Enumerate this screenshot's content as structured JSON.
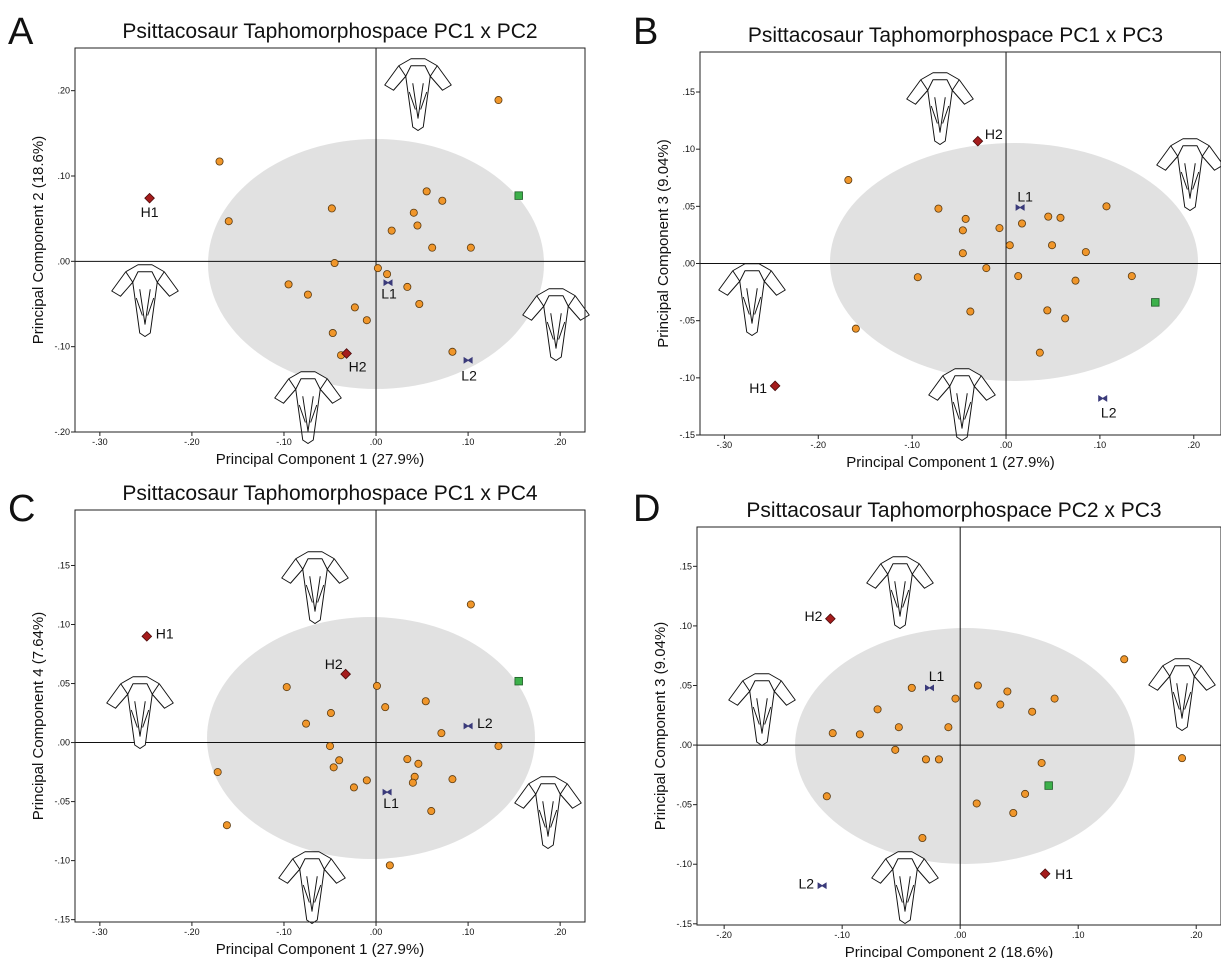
{
  "chart_data": [
    {
      "type": "scatter",
      "panel": "A",
      "title": "Psittacosaur Taphomorphospace PC1 x PC2",
      "x_label": "Principal Component 1 (27.9%)",
      "y_label": "Principal Component 2 (18.6%)",
      "xlim": [
        -0.327,
        0.227
      ],
      "ylim": [
        -0.2,
        0.25
      ],
      "xticks": [
        {
          "value": -0.3,
          "label": "-.30"
        },
        {
          "value": -0.2,
          "label": "-.20"
        },
        {
          "value": -0.1,
          "label": "-.10"
        },
        {
          "value": 0,
          "label": ".00"
        },
        {
          "value": 0.1,
          "label": ".10"
        },
        {
          "value": 0.2,
          "label": ".20"
        }
      ],
      "yticks": [
        {
          "value": -0.2,
          "label": "-.20"
        },
        {
          "value": -0.1,
          "label": "-.10"
        },
        {
          "value": 0,
          "label": ".00"
        },
        {
          "value": 0.1,
          "label": ".10"
        },
        {
          "value": 0.2,
          "label": ".20"
        }
      ],
      "series": [
        {
          "color": "#f0962a",
          "marker": "circle",
          "x": [
            -0.17,
            -0.16,
            -0.048,
            0.133,
            0.055,
            0.072,
            0.041,
            0.045,
            0.017,
            0.061,
            0.103,
            -0.045,
            0.002,
            0.012,
            -0.095,
            -0.074,
            0.034,
            0.047,
            -0.023,
            -0.01,
            -0.047,
            -0.038,
            0.083
          ],
          "y": [
            0.117,
            0.047,
            0.062,
            0.189,
            0.082,
            0.071,
            0.057,
            0.042,
            0.036,
            0.016,
            0.016,
            -0.002,
            -0.008,
            -0.015,
            -0.027,
            -0.039,
            -0.03,
            -0.05,
            -0.054,
            -0.069,
            -0.084,
            -0.11,
            -0.106
          ]
        },
        {
          "color": "#3cb04a",
          "marker": "square",
          "x": [
            0.155
          ],
          "y": [
            0.077
          ]
        },
        {
          "name": "H1",
          "color": "#a51c1c",
          "marker": "diamond",
          "x": [
            -0.246
          ],
          "y": [
            0.074
          ]
        },
        {
          "name": "H2",
          "color": "#a51c1c",
          "marker": "diamond",
          "x": [
            -0.032
          ],
          "y": [
            -0.108
          ]
        },
        {
          "name": "L1",
          "color": "#3a3a7a",
          "marker": "bowtie",
          "x": [
            0.013
          ],
          "y": [
            -0.025
          ]
        },
        {
          "name": "L2",
          "color": "#3a3a7a",
          "marker": "bowtie",
          "x": [
            0.1
          ],
          "y": [
            -0.116
          ]
        }
      ]
    },
    {
      "type": "scatter",
      "panel": "B",
      "title": "Psittacosaur Taphomorphospace PC1 x PC3",
      "x_label": "Principal Component 1 (27.9%)",
      "y_label": "Principal Component 3 (9.04%)",
      "xlim": [
        -0.326,
        0.229
      ],
      "ylim": [
        -0.15,
        0.185
      ],
      "xticks": [
        {
          "value": -0.3,
          "label": "-.30"
        },
        {
          "value": -0.2,
          "label": "-.20"
        },
        {
          "value": -0.1,
          "label": "-.10"
        },
        {
          "value": 0,
          "label": ".00"
        },
        {
          "value": 0.1,
          "label": ".10"
        },
        {
          "value": 0.2,
          "label": ".20"
        }
      ],
      "yticks": [
        {
          "value": -0.15,
          "label": "-.15"
        },
        {
          "value": -0.1,
          "label": "-.10"
        },
        {
          "value": -0.05,
          "label": "-.05"
        },
        {
          "value": 0,
          "label": ".00"
        },
        {
          "value": 0.05,
          "label": ".05"
        },
        {
          "value": 0.1,
          "label": ".10"
        },
        {
          "value": 0.15,
          "label": ".15"
        }
      ],
      "series": [
        {
          "color": "#f0962a",
          "marker": "circle",
          "x": [
            -0.168,
            -0.072,
            -0.043,
            -0.046,
            -0.007,
            0.017,
            0.045,
            0.058,
            0.107,
            0.004,
            0.049,
            -0.046,
            0.085,
            -0.021,
            -0.094,
            0.013,
            0.074,
            0.134,
            -0.038,
            0.044,
            0.063,
            -0.16,
            0.036
          ],
          "y": [
            0.073,
            0.048,
            0.039,
            0.029,
            0.031,
            0.035,
            0.041,
            0.04,
            0.05,
            0.016,
            0.016,
            0.009,
            0.01,
            -0.004,
            -0.012,
            -0.011,
            -0.015,
            -0.011,
            -0.042,
            -0.041,
            -0.048,
            -0.057,
            -0.078
          ]
        },
        {
          "color": "#3cb04a",
          "marker": "square",
          "x": [
            0.159
          ],
          "y": [
            -0.034
          ]
        },
        {
          "name": "H1",
          "color": "#a51c1c",
          "marker": "diamond",
          "x": [
            -0.246
          ],
          "y": [
            -0.107
          ]
        },
        {
          "name": "H2",
          "color": "#a51c1c",
          "marker": "diamond",
          "x": [
            -0.03
          ],
          "y": [
            0.107
          ]
        },
        {
          "name": "L1",
          "color": "#3a3a7a",
          "marker": "bowtie",
          "x": [
            0.015
          ],
          "y": [
            0.049
          ]
        },
        {
          "name": "L2",
          "color": "#3a3a7a",
          "marker": "bowtie",
          "x": [
            0.103
          ],
          "y": [
            -0.118
          ]
        }
      ]
    },
    {
      "type": "scatter",
      "panel": "C",
      "title": "Psittacosaur Taphomorphospace PC1 x PC4",
      "x_label": "Principal Component 1 (27.9%)",
      "y_label": "Principal Component 4 (7.64%)",
      "xlim": [
        -0.327,
        0.227
      ],
      "ylim": [
        -0.152,
        0.197
      ],
      "xticks": [
        {
          "value": -0.3,
          "label": "-.30"
        },
        {
          "value": -0.2,
          "label": "-.20"
        },
        {
          "value": -0.1,
          "label": "-.10"
        },
        {
          "value": 0,
          "label": ".00"
        },
        {
          "value": 0.1,
          "label": ".10"
        },
        {
          "value": 0.2,
          "label": ".20"
        }
      ],
      "yticks": [
        {
          "value": -0.15,
          "label": "-.15"
        },
        {
          "value": -0.1,
          "label": "-.10"
        },
        {
          "value": -0.05,
          "label": "-.05"
        },
        {
          "value": 0,
          "label": ".00"
        },
        {
          "value": 0.05,
          "label": ".05"
        },
        {
          "value": 0.1,
          "label": ".10"
        },
        {
          "value": 0.15,
          "label": ".15"
        }
      ],
      "series": [
        {
          "color": "#f0962a",
          "marker": "circle",
          "x": [
            0.103,
            -0.097,
            0.001,
            -0.076,
            -0.049,
            0.01,
            0.054,
            0.071,
            -0.05,
            0.133,
            -0.04,
            -0.046,
            -0.01,
            -0.024,
            0.034,
            0.046,
            0.042,
            0.04,
            0.083,
            -0.172,
            0.06,
            -0.162,
            0.015
          ],
          "y": [
            0.117,
            0.047,
            0.048,
            0.016,
            0.025,
            0.03,
            0.035,
            0.008,
            -0.003,
            -0.003,
            -0.015,
            -0.021,
            -0.032,
            -0.038,
            -0.014,
            -0.018,
            -0.029,
            -0.034,
            -0.031,
            -0.025,
            -0.058,
            -0.07,
            -0.104
          ]
        },
        {
          "color": "#3cb04a",
          "marker": "square",
          "x": [
            0.155
          ],
          "y": [
            0.052
          ]
        },
        {
          "name": "H1",
          "color": "#a51c1c",
          "marker": "diamond",
          "x": [
            -0.249
          ],
          "y": [
            0.09
          ]
        },
        {
          "name": "H2",
          "color": "#a51c1c",
          "marker": "diamond",
          "x": [
            -0.033
          ],
          "y": [
            0.058
          ]
        },
        {
          "name": "L1",
          "color": "#3a3a7a",
          "marker": "bowtie",
          "x": [
            0.012
          ],
          "y": [
            -0.042
          ]
        },
        {
          "name": "L2",
          "color": "#3a3a7a",
          "marker": "bowtie",
          "x": [
            0.1
          ],
          "y": [
            0.014
          ]
        }
      ]
    },
    {
      "type": "scatter",
      "panel": "D",
      "title": "Psittacosaur Taphomorphospace PC2 x PC3",
      "x_label": "Principal Component 2 (18.6%)",
      "y_label": "Principal Component 3 (9.04%)",
      "xlim": [
        -0.223,
        0.221
      ],
      "ylim": [
        -0.151,
        0.183
      ],
      "xticks": [
        {
          "value": -0.2,
          "label": "-.20"
        },
        {
          "value": -0.1,
          "label": "-.10"
        },
        {
          "value": 0,
          "label": ".00"
        },
        {
          "value": 0.1,
          "label": ".10"
        },
        {
          "value": 0.2,
          "label": ".20"
        }
      ],
      "yticks": [
        {
          "value": -0.15,
          "label": "-.15"
        },
        {
          "value": -0.1,
          "label": "-.10"
        },
        {
          "value": -0.05,
          "label": "-.05"
        },
        {
          "value": 0,
          "label": ".00"
        },
        {
          "value": 0.05,
          "label": ".05"
        },
        {
          "value": 0.1,
          "label": ".10"
        },
        {
          "value": 0.15,
          "label": ".15"
        }
      ],
      "series": [
        {
          "color": "#f0962a",
          "marker": "circle",
          "x": [
            0.139,
            -0.041,
            0.015,
            0.04,
            0.08,
            0.034,
            0.061,
            -0.07,
            -0.004,
            -0.052,
            -0.01,
            -0.108,
            -0.085,
            -0.055,
            -0.029,
            -0.018,
            0.069,
            0.188,
            -0.113,
            0.055,
            0.014,
            0.045,
            -0.032
          ],
          "y": [
            0.072,
            0.048,
            0.05,
            0.045,
            0.039,
            0.034,
            0.028,
            0.03,
            0.039,
            0.015,
            0.015,
            0.01,
            0.009,
            -0.004,
            -0.012,
            -0.012,
            -0.015,
            -0.011,
            -0.043,
            -0.041,
            -0.049,
            -0.057,
            -0.078
          ]
        },
        {
          "color": "#3cb04a",
          "marker": "square",
          "x": [
            0.075
          ],
          "y": [
            -0.034
          ]
        },
        {
          "name": "H1",
          "color": "#a51c1c",
          "marker": "diamond",
          "x": [
            0.072
          ],
          "y": [
            -0.108
          ]
        },
        {
          "name": "H2",
          "color": "#a51c1c",
          "marker": "diamond",
          "x": [
            -0.11
          ],
          "y": [
            0.106
          ]
        },
        {
          "name": "L1",
          "color": "#3a3a7a",
          "marker": "bowtie",
          "x": [
            -0.026
          ],
          "y": [
            0.048
          ]
        },
        {
          "name": "L2",
          "color": "#3a3a7a",
          "marker": "bowtie",
          "x": [
            -0.117
          ],
          "y": [
            -0.118
          ]
        }
      ]
    }
  ]
}
